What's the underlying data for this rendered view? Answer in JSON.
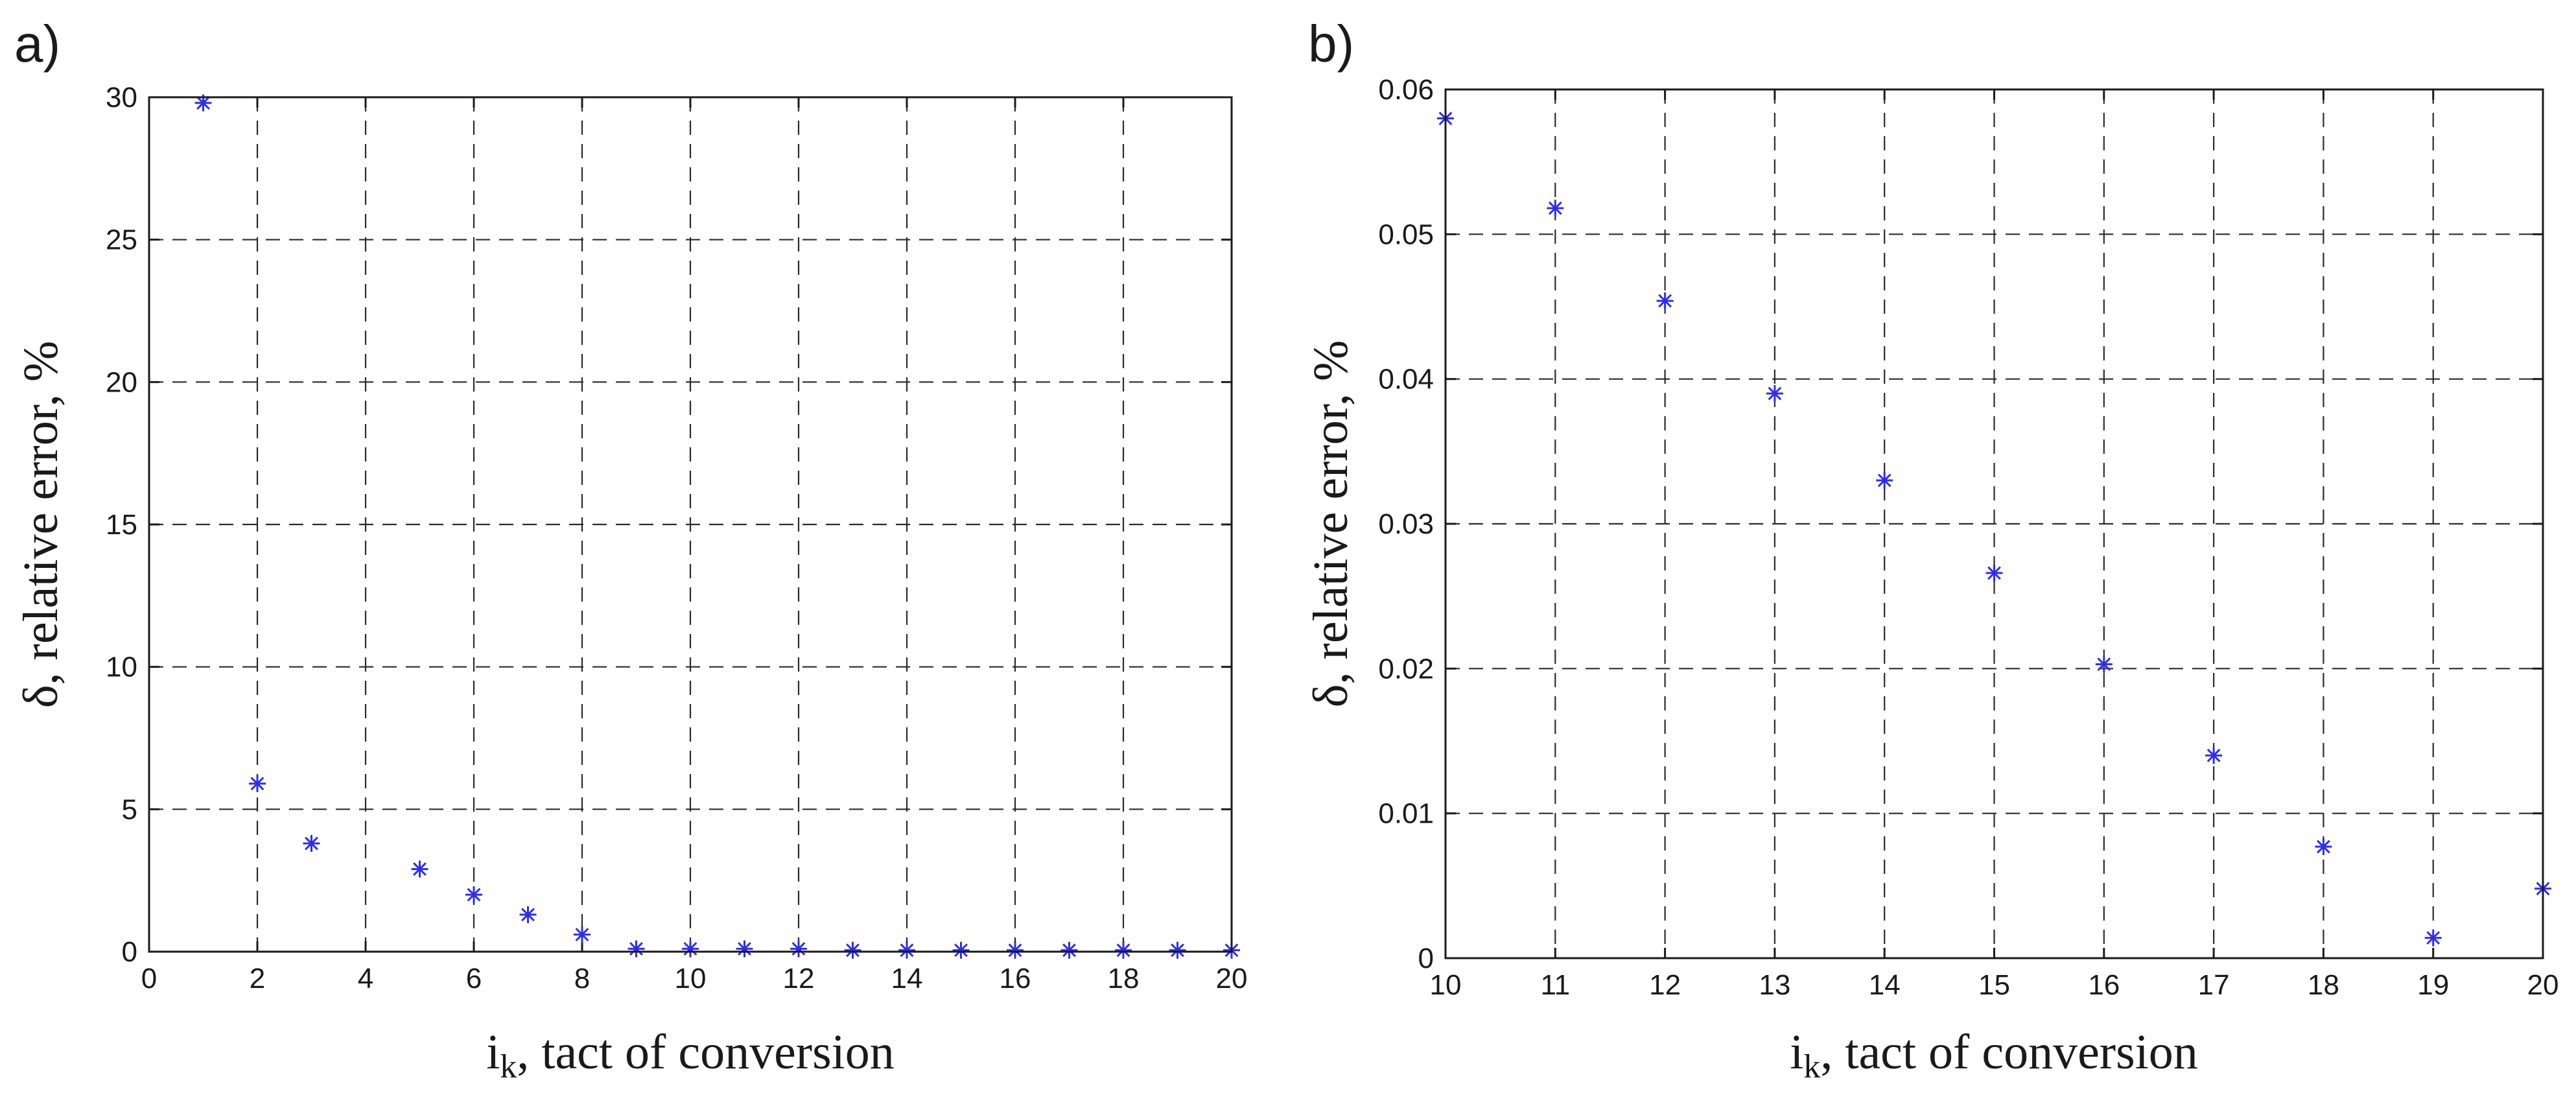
{
  "chart_data": [
    {
      "type": "scatter",
      "panel_label": "a)",
      "marker": "asterisk",
      "color": "#2d2df0",
      "xlabel_main": "i",
      "xlabel_sub": "k",
      "xlabel_rest": ", tact of conversion",
      "ylabel": "δ, relative error, %",
      "xlim": [
        0,
        20
      ],
      "ylim": [
        0,
        30
      ],
      "grid": true,
      "xticks": [
        0,
        2,
        4,
        6,
        8,
        10,
        12,
        14,
        16,
        18,
        20
      ],
      "yticks": [
        0,
        5,
        10,
        15,
        20,
        25,
        30
      ],
      "x": [
        1,
        2,
        3,
        5,
        6,
        7,
        8,
        9,
        10,
        11,
        12,
        13,
        14,
        15,
        16,
        17,
        18,
        19,
        20
      ],
      "y": [
        29.8,
        5.9,
        3.8,
        2.9,
        2.0,
        1.3,
        0.6,
        0.1,
        0.1,
        0.1,
        0.1,
        0.05,
        0.05,
        0.05,
        0.05,
        0.05,
        0.05,
        0.05,
        0.05
      ]
    },
    {
      "type": "scatter",
      "panel_label": "b)",
      "marker": "asterisk",
      "color": "#2d2df0",
      "xlabel_main": "i",
      "xlabel_sub": "k",
      "xlabel_rest": ", tact of conversion",
      "ylabel": "δ, relative error, %",
      "xlim": [
        10,
        20
      ],
      "ylim": [
        0,
        0.06
      ],
      "grid": true,
      "xticks": [
        10,
        11,
        12,
        13,
        14,
        15,
        16,
        17,
        18,
        19,
        20
      ],
      "yticks": [
        0,
        0.01,
        0.02,
        0.03,
        0.04,
        0.05,
        0.06
      ],
      "x": [
        10,
        11,
        12,
        13,
        14,
        15,
        16,
        17,
        18,
        19,
        20
      ],
      "y": [
        0.058,
        0.0518,
        0.0454,
        0.039,
        0.033,
        0.0266,
        0.0203,
        0.014,
        0.0077,
        0.0014,
        0.0048
      ]
    }
  ]
}
